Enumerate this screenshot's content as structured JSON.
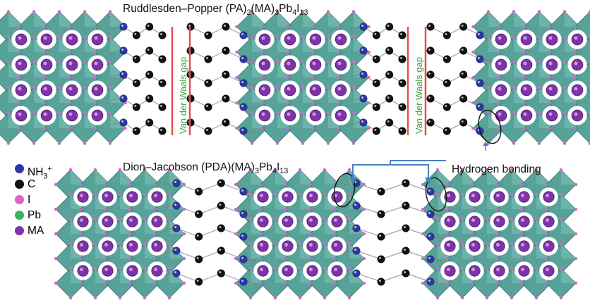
{
  "diagram": {
    "top_title": {
      "prefix": "Ruddlesden–Popper (PA)",
      "s1": "2",
      "m1": "(MA)",
      "s2": "3",
      "m2": "Pb",
      "s3": "4",
      "m3": "I",
      "s4": "13"
    },
    "bottom_title": {
      "prefix": "Dion–Jacobson (PDA)(MA)",
      "s1": "3",
      "m1": "Pb",
      "s2": "4",
      "m2": "I",
      "s3": "13"
    },
    "gap_label": "Van der Waals gap",
    "hbond_label": "Hydrogen bonding"
  },
  "legend": [
    {
      "label": "NH",
      "sub": "3",
      "sup": "+",
      "color": "#2f37a6"
    },
    {
      "label": "C",
      "color": "#111111"
    },
    {
      "label": "I",
      "color": "#e062c8"
    },
    {
      "label": "Pb",
      "color": "#3db35a"
    },
    {
      "label": "MA",
      "color": "#7e33a8"
    }
  ],
  "colors": {
    "octahedron": "#4f9f95",
    "octahedron_dark": "#2f6f68",
    "gap_line": "#e0524d",
    "gap_text": "#3aa23a",
    "arrow": "#4a7fc0",
    "hbond": "#e03a3a"
  }
}
